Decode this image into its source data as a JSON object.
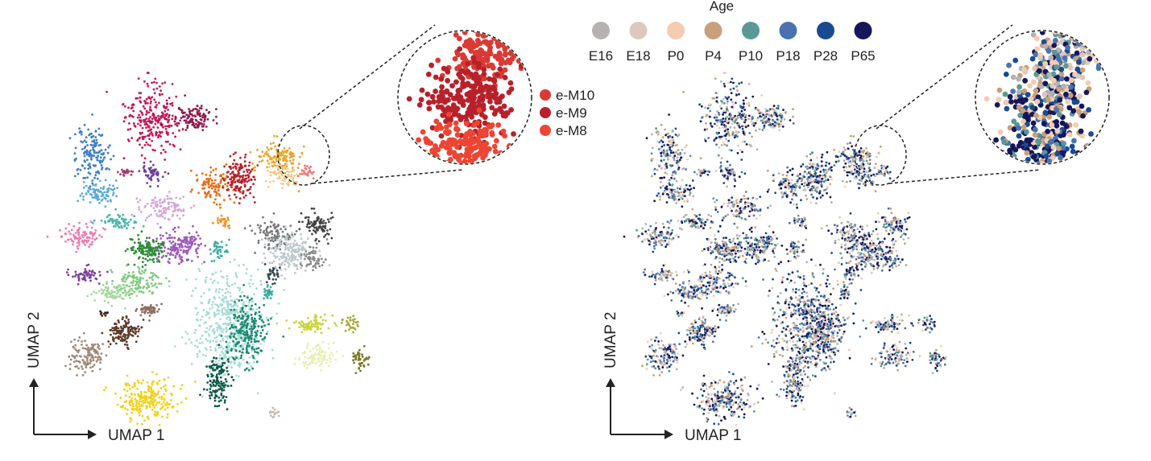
{
  "chart_data": [
    {
      "type": "scatter",
      "panel": "left",
      "encoding": "cell cluster",
      "xlabel": "UMAP 1",
      "ylabel": "UMAP 2",
      "legend": {
        "placement": "right of inset",
        "entries": [
          {
            "label": "e-M10",
            "color": "#d93a34"
          },
          {
            "label": "e-M9",
            "color": "#b8202a"
          },
          {
            "label": "e-M8",
            "color": "#ee4433"
          }
        ]
      },
      "inset": {
        "zoom_of_cluster": "e-M8 / e-M9 / e-M10",
        "outline": "dashed circle"
      },
      "clusters": [
        {
          "color": "#c2185b",
          "cx": 0.22,
          "cy": 0.12,
          "rx": 0.045,
          "ry": 0.09,
          "n": 260
        },
        {
          "color": "#8e1a4d",
          "cx": 0.29,
          "cy": 0.12,
          "rx": 0.035,
          "ry": 0.03,
          "n": 120
        },
        {
          "color": "#a63a6b",
          "cx": 0.17,
          "cy": 0.27,
          "rx": 0.012,
          "ry": 0.01,
          "n": 20
        },
        {
          "color": "#3f7fc4",
          "cx": 0.11,
          "cy": 0.22,
          "rx": 0.03,
          "ry": 0.07,
          "n": 150
        },
        {
          "color": "#5aa8d8",
          "cx": 0.12,
          "cy": 0.33,
          "rx": 0.03,
          "ry": 0.03,
          "n": 90
        },
        {
          "color": "#4db6ac",
          "cx": 0.16,
          "cy": 0.41,
          "rx": 0.03,
          "ry": 0.02,
          "n": 70
        },
        {
          "color": "#ee7ab0",
          "cx": 0.09,
          "cy": 0.45,
          "rx": 0.03,
          "ry": 0.03,
          "n": 90
        },
        {
          "color": "#7b3fa0",
          "cx": 0.1,
          "cy": 0.56,
          "rx": 0.025,
          "ry": 0.02,
          "n": 60
        },
        {
          "color": "#6a3fa0",
          "cx": 0.22,
          "cy": 0.27,
          "rx": 0.02,
          "ry": 0.025,
          "n": 50
        },
        {
          "color": "#d3a8d8",
          "cx": 0.24,
          "cy": 0.37,
          "rx": 0.035,
          "ry": 0.03,
          "n": 110
        },
        {
          "color": "#9c5ab8",
          "cx": 0.27,
          "cy": 0.48,
          "rx": 0.04,
          "ry": 0.04,
          "n": 160
        },
        {
          "color": "#2e8b3a",
          "cx": 0.21,
          "cy": 0.49,
          "rx": 0.03,
          "ry": 0.035,
          "n": 130
        },
        {
          "color": "#7fc97f",
          "cx": 0.19,
          "cy": 0.58,
          "rx": 0.04,
          "ry": 0.03,
          "n": 120
        },
        {
          "color": "#a8d8a0",
          "cx": 0.15,
          "cy": 0.61,
          "rx": 0.03,
          "ry": 0.025,
          "n": 80
        },
        {
          "color": "#8d6e63",
          "cx": 0.21,
          "cy": 0.66,
          "rx": 0.02,
          "ry": 0.015,
          "n": 50
        },
        {
          "color": "#5d3a29",
          "cx": 0.17,
          "cy": 0.72,
          "rx": 0.025,
          "ry": 0.035,
          "n": 120
        },
        {
          "color": "#3d2217",
          "cx": 0.13,
          "cy": 0.67,
          "rx": 0.008,
          "ry": 0.008,
          "n": 10
        },
        {
          "color": "#a08878",
          "cx": 0.1,
          "cy": 0.79,
          "rx": 0.03,
          "ry": 0.04,
          "n": 120
        },
        {
          "color": "#f2d21b",
          "cx": 0.21,
          "cy": 0.91,
          "rx": 0.05,
          "ry": 0.05,
          "n": 230
        },
        {
          "color": "#e8701a",
          "cx": 0.33,
          "cy": 0.31,
          "rx": 0.03,
          "ry": 0.04,
          "n": 110
        },
        {
          "color": "#f0962a",
          "cx": 0.35,
          "cy": 0.41,
          "rx": 0.012,
          "ry": 0.02,
          "n": 30
        },
        {
          "color": "#e8a52a",
          "cx": 0.45,
          "cy": 0.23,
          "rx": 0.035,
          "ry": 0.04,
          "n": 130
        },
        {
          "color": "#f6c98a",
          "cx": 0.46,
          "cy": 0.28,
          "rx": 0.025,
          "ry": 0.025,
          "n": 70
        },
        {
          "color": "#e87a7a",
          "cx": 0.5,
          "cy": 0.27,
          "rx": 0.012,
          "ry": 0.015,
          "n": 25
        },
        {
          "color": "#b8202a",
          "cx": 0.38,
          "cy": 0.29,
          "rx": 0.025,
          "ry": 0.05,
          "n": 150
        },
        {
          "color": "#3aada3",
          "cx": 0.34,
          "cy": 0.49,
          "rx": 0.015,
          "ry": 0.03,
          "n": 40
        },
        {
          "color": "#a8dcd6",
          "cx": 0.36,
          "cy": 0.7,
          "rx": 0.06,
          "ry": 0.13,
          "n": 520
        },
        {
          "color": "#1b8a72",
          "cx": 0.39,
          "cy": 0.72,
          "rx": 0.035,
          "ry": 0.08,
          "n": 220
        },
        {
          "color": "#0e5a48",
          "cx": 0.34,
          "cy": 0.86,
          "rx": 0.02,
          "ry": 0.06,
          "n": 140
        },
        {
          "color": "#3aada3",
          "cx": 0.43,
          "cy": 0.61,
          "rx": 0.01,
          "ry": 0.02,
          "n": 25
        },
        {
          "color": "#7a7a7a",
          "cx": 0.44,
          "cy": 0.45,
          "rx": 0.03,
          "ry": 0.04,
          "n": 110
        },
        {
          "color": "#bcc8cc",
          "cx": 0.47,
          "cy": 0.5,
          "rx": 0.04,
          "ry": 0.05,
          "n": 170
        },
        {
          "color": "#444444",
          "cx": 0.52,
          "cy": 0.42,
          "rx": 0.025,
          "ry": 0.035,
          "n": 90
        },
        {
          "color": "#8a8a8a",
          "cx": 0.51,
          "cy": 0.51,
          "rx": 0.02,
          "ry": 0.03,
          "n": 60
        },
        {
          "color": "#36474f",
          "cx": 0.44,
          "cy": 0.56,
          "rx": 0.012,
          "ry": 0.02,
          "n": 30
        },
        {
          "color": "#c9d33a",
          "cx": 0.51,
          "cy": 0.7,
          "rx": 0.03,
          "ry": 0.02,
          "n": 80
        },
        {
          "color": "#e8efb0",
          "cx": 0.52,
          "cy": 0.79,
          "rx": 0.035,
          "ry": 0.03,
          "n": 90
        },
        {
          "color": "#a8a83a",
          "cx": 0.58,
          "cy": 0.7,
          "rx": 0.012,
          "ry": 0.02,
          "n": 30
        },
        {
          "color": "#7a7a2a",
          "cx": 0.6,
          "cy": 0.8,
          "rx": 0.014,
          "ry": 0.03,
          "n": 45
        },
        {
          "color": "#c8b8b0",
          "cx": 0.44,
          "cy": 0.95,
          "rx": 0.012,
          "ry": 0.012,
          "n": 15
        }
      ],
      "inset_clusters": [
        {
          "color": "#d93a34",
          "cx": 0.3,
          "cy": 0.18,
          "rx": 0.55,
          "ry": 0.3,
          "n": 160
        },
        {
          "color": "#b8202a",
          "cx": 0.1,
          "cy": 0.52,
          "rx": 0.75,
          "ry": 0.3,
          "n": 220
        },
        {
          "color": "#ee4433",
          "cx": 0.0,
          "cy": 0.9,
          "rx": 0.75,
          "ry": 0.25,
          "n": 160
        }
      ]
    },
    {
      "type": "scatter",
      "panel": "right",
      "encoding": "age",
      "xlabel": "UMAP 1",
      "ylabel": "UMAP 2",
      "legend": {
        "title": "Age",
        "placement": "top",
        "entries": [
          {
            "label": "E16",
            "color": "#b7b2b2"
          },
          {
            "label": "E18",
            "color": "#dcc8bd"
          },
          {
            "label": "P0",
            "color": "#f5cbb1"
          },
          {
            "label": "P4",
            "color": "#c8a07a"
          },
          {
            "label": "P10",
            "color": "#5a9896"
          },
          {
            "label": "P18",
            "color": "#4a72b0"
          },
          {
            "label": "P28",
            "color": "#1a4a92"
          },
          {
            "label": "P65",
            "color": "#16175a"
          }
        ]
      },
      "inset": {
        "zoom_of_cluster": "e-M8 / e-M9 / e-M10",
        "outline": "dashed circle"
      }
    }
  ]
}
